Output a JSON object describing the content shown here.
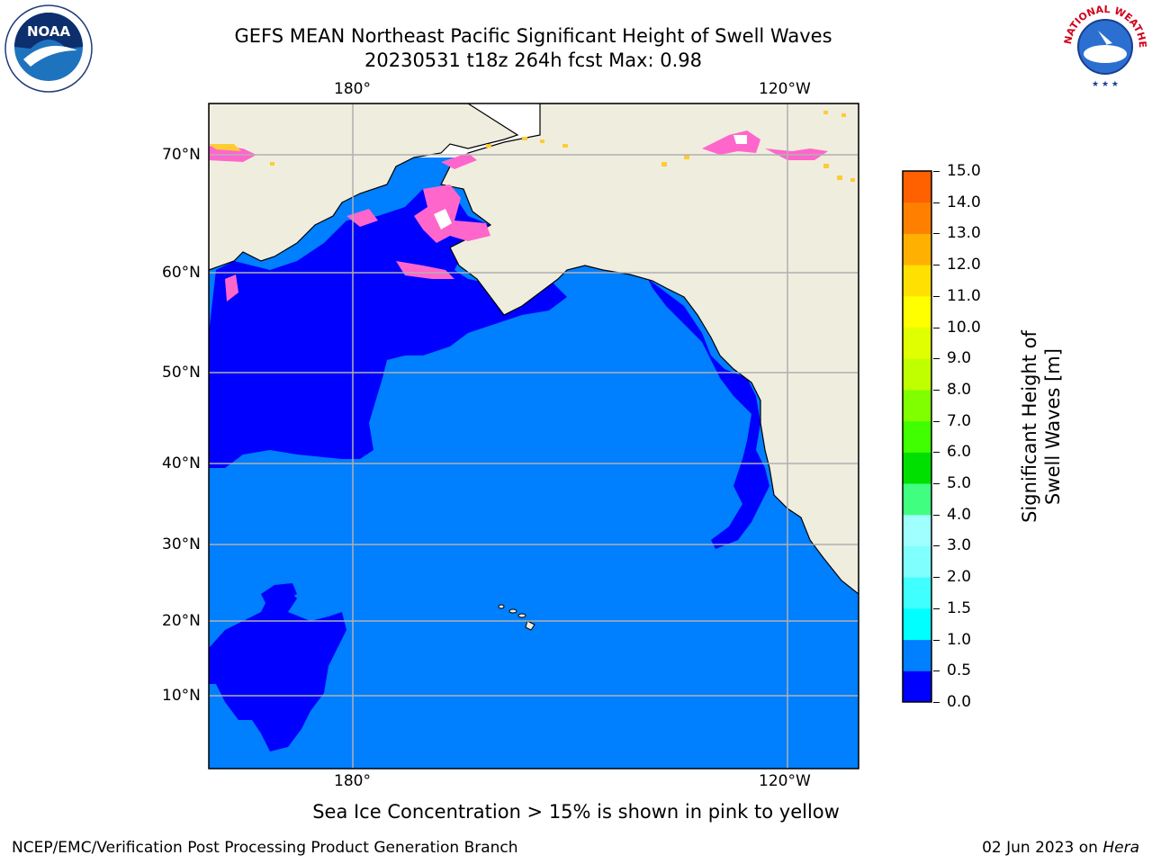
{
  "header": {
    "title_line1": "GEFS MEAN Northeast Pacific Significant Height of Swell Waves",
    "title_line2": "20230531 t18z 264h fcst   Max: 0.98"
  },
  "logos": {
    "left": {
      "name": "noaa-logo",
      "text": "NOAA"
    },
    "right": {
      "name": "national-weather-service-logo",
      "text": "NATIONAL WEATHER SERVICE"
    }
  },
  "map": {
    "lon_labels_top": [
      "180°",
      "120°W"
    ],
    "lon_labels_bottom": [
      "180°",
      "120°W"
    ],
    "lat_labels": [
      "70°N",
      "60°N",
      "50°N",
      "40°N",
      "30°N",
      "20°N",
      "10°N"
    ],
    "colors": {
      "land": "#efedde",
      "ocean_low": "#0000ff",
      "ocean_mid": "#007fff",
      "ice_pink": "#ff66cc",
      "ice_yellow": "#ffcc33",
      "grid": "#b0b0b0"
    }
  },
  "colorbar": {
    "title": "Significant Height of Swell Waves [m]",
    "ticks": [
      "15.0",
      "14.0",
      "13.0",
      "12.0",
      "11.0",
      "10.0",
      "9.0",
      "8.0",
      "7.0",
      "6.0",
      "5.0",
      "4.0",
      "3.0",
      "2.0",
      "1.5",
      "1.0",
      "0.5",
      "0.0"
    ],
    "colors_bottom_to_top": [
      "#0000ff",
      "#007fff",
      "#00ffff",
      "#40ffff",
      "#80ffff",
      "#a0ffff",
      "#40ff80",
      "#00e000",
      "#40ff00",
      "#80ff00",
      "#c0ff00",
      "#e0ff00",
      "#ffff00",
      "#ffe000",
      "#ffb000",
      "#ff8000",
      "#ff6000",
      "#ff3000",
      "#ff0000"
    ]
  },
  "notes": {
    "ice": "Sea Ice Concentration > 15% is shown in pink to yellow",
    "footer_left": "NCEP/EMC/Verification Post Processing Product Generation Branch",
    "footer_right_prefix": "02 Jun 2023 on ",
    "footer_right_host": "Hera"
  }
}
